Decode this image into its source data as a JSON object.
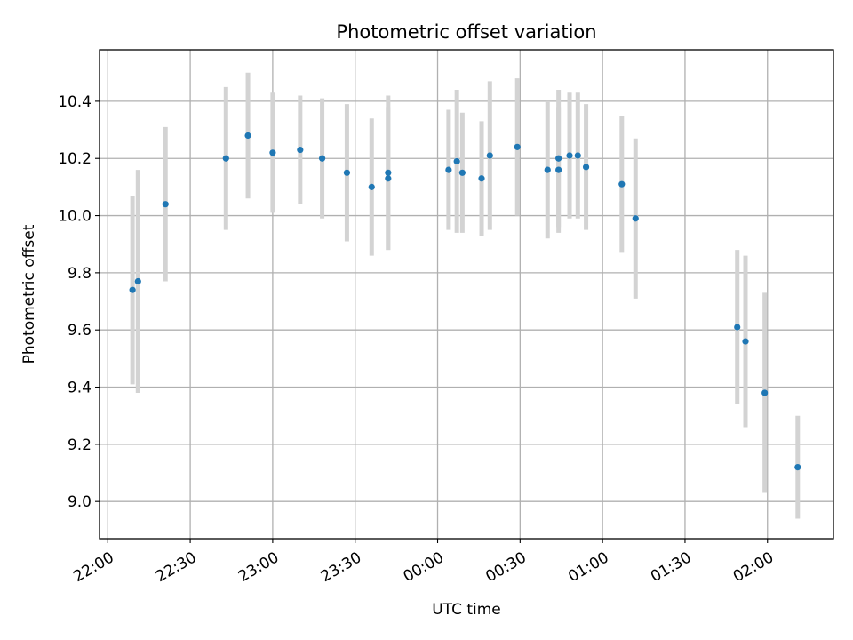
{
  "chart_data": {
    "type": "scatter",
    "title": "Photometric offset variation",
    "xlabel": "UTC time",
    "ylabel": "Photometric offset",
    "x_ticks": [
      "22:00",
      "22:30",
      "23:00",
      "23:30",
      "00:00",
      "00:30",
      "01:00",
      "01:30",
      "02:00"
    ],
    "y_ticks": [
      "9.0",
      "9.2",
      "9.4",
      "9.6",
      "9.8",
      "10.0",
      "10.2",
      "10.4"
    ],
    "y_tick_values": [
      9.0,
      9.2,
      9.4,
      9.6,
      9.8,
      10.0,
      10.2,
      10.4
    ],
    "xlim": [
      "21:57",
      "02:24"
    ],
    "ylim": [
      8.87,
      10.58
    ],
    "grid": true,
    "point_color": "#1f77b4",
    "errorbar_color": "#d3d3d3",
    "series": [
      {
        "points": [
          {
            "t": "22:09",
            "y": 9.74,
            "err": 0.33
          },
          {
            "t": "22:11",
            "y": 9.77,
            "err": 0.39
          },
          {
            "t": "22:21",
            "y": 10.04,
            "err": 0.27
          },
          {
            "t": "22:43",
            "y": 10.2,
            "err": 0.25
          },
          {
            "t": "22:51",
            "y": 10.28,
            "err": 0.22
          },
          {
            "t": "23:00",
            "y": 10.22,
            "err": 0.21
          },
          {
            "t": "23:10",
            "y": 10.23,
            "err": 0.19
          },
          {
            "t": "23:18",
            "y": 10.2,
            "err": 0.21
          },
          {
            "t": "23:27",
            "y": 10.15,
            "err": 0.24
          },
          {
            "t": "23:36",
            "y": 10.1,
            "err": 0.24
          },
          {
            "t": "23:42",
            "y": 10.13,
            "err": 0.25
          },
          {
            "t": "23:42",
            "y": 10.15,
            "err": 0.27
          },
          {
            "t": "00:04",
            "y": 10.16,
            "err": 0.21
          },
          {
            "t": "00:07",
            "y": 10.19,
            "err": 0.25
          },
          {
            "t": "00:09",
            "y": 10.15,
            "err": 0.21
          },
          {
            "t": "00:16",
            "y": 10.13,
            "err": 0.2
          },
          {
            "t": "00:19",
            "y": 10.21,
            "err": 0.26
          },
          {
            "t": "00:29",
            "y": 10.24,
            "err": 0.24
          },
          {
            "t": "00:40",
            "y": 10.16,
            "err": 0.24
          },
          {
            "t": "00:44",
            "y": 10.16,
            "err": 0.22
          },
          {
            "t": "00:44",
            "y": 10.2,
            "err": 0.24
          },
          {
            "t": "00:48",
            "y": 10.21,
            "err": 0.22
          },
          {
            "t": "00:51",
            "y": 10.21,
            "err": 0.22
          },
          {
            "t": "00:54",
            "y": 10.17,
            "err": 0.22
          },
          {
            "t": "01:07",
            "y": 10.11,
            "err": 0.24
          },
          {
            "t": "01:12",
            "y": 9.99,
            "err": 0.28
          },
          {
            "t": "01:49",
            "y": 9.61,
            "err": 0.27
          },
          {
            "t": "01:52",
            "y": 9.56,
            "err": 0.3
          },
          {
            "t": "01:59",
            "y": 9.38,
            "err": 0.35
          },
          {
            "t": "02:11",
            "y": 9.12,
            "err": 0.18
          }
        ]
      }
    ]
  }
}
